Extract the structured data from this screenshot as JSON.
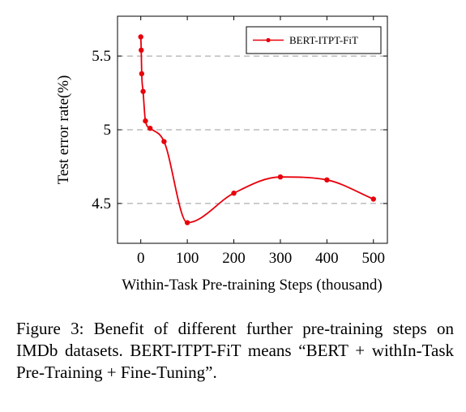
{
  "chart_data": {
    "type": "line",
    "title": "",
    "xlabel": "Within-Task Pre-training Steps (thousand)",
    "ylabel": "Test error rate(%)",
    "xlim": [
      -50,
      530
    ],
    "ylim": [
      4.23,
      5.77
    ],
    "x_ticks": [
      0,
      100,
      200,
      300,
      400,
      500
    ],
    "y_ticks": [
      4.5,
      5,
      5.5
    ],
    "x_tick_labels": [
      "0",
      "100",
      "200",
      "300",
      "400",
      "500"
    ],
    "y_tick_labels": [
      "4.5",
      "5",
      "5.5"
    ],
    "grid": "horizontal-dashed",
    "legend_position": "top-right",
    "series": [
      {
        "name": "BERT-ITPT-FiT",
        "color": "#e8000b",
        "marker": "circle",
        "x": [
          0,
          1,
          2,
          5,
          10,
          20,
          50,
          100,
          200,
          300,
          400,
          500
        ],
        "y": [
          5.63,
          5.54,
          5.38,
          5.26,
          5.06,
          5.01,
          4.92,
          4.37,
          4.57,
          4.68,
          4.66,
          4.53
        ]
      }
    ]
  },
  "caption": {
    "text": "Figure 3: Benefit of different further pre-training steps on IMDb datasets. BERT-ITPT-FiT means “BERT + withIn-Task Pre-Training + Fine-Tuning”."
  }
}
